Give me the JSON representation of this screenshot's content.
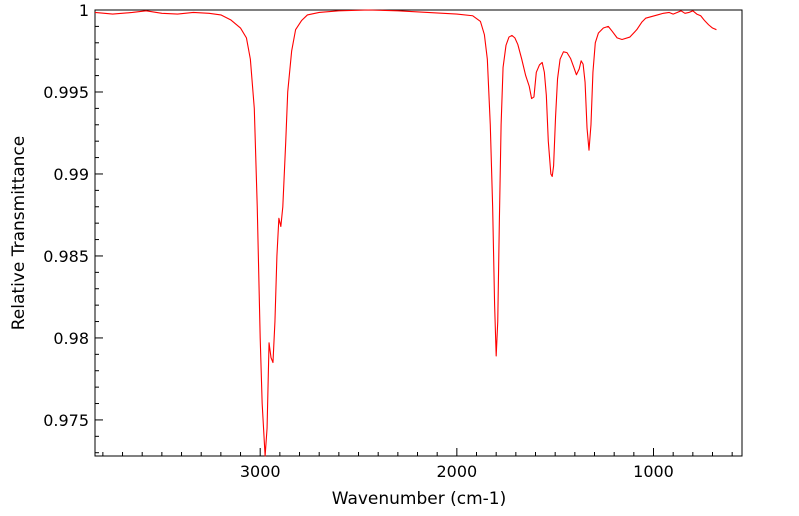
{
  "chart_data": {
    "type": "line",
    "title": "",
    "xlabel": "Wavenumber (cm-1)",
    "ylabel": "Relative Transmittance",
    "xlim": [
      3840,
      550
    ],
    "ylim": [
      0.9728,
      1.0
    ],
    "x_reversed": true,
    "grid": false,
    "legend": "none",
    "x_ticks": [
      {
        "value": 3000,
        "label": "3000"
      },
      {
        "value": 2000,
        "label": "2000"
      },
      {
        "value": 1000,
        "label": "1000"
      }
    ],
    "y_ticks": [
      {
        "value": 1.0,
        "label": "1"
      },
      {
        "value": 0.995,
        "label": "0.995"
      },
      {
        "value": 0.99,
        "label": "0.99"
      },
      {
        "value": 0.985,
        "label": "0.985"
      },
      {
        "value": 0.98,
        "label": "0.98"
      },
      {
        "value": 0.975,
        "label": "0.975"
      }
    ],
    "series": [
      {
        "color": "#ff0000",
        "points": [
          [
            3840,
            0.99985
          ],
          [
            3750,
            0.99975
          ],
          [
            3650,
            0.99985
          ],
          [
            3580,
            0.99995
          ],
          [
            3500,
            0.9998
          ],
          [
            3420,
            0.99975
          ],
          [
            3340,
            0.99985
          ],
          [
            3260,
            0.9998
          ],
          [
            3200,
            0.9997
          ],
          [
            3150,
            0.9994
          ],
          [
            3100,
            0.9989
          ],
          [
            3070,
            0.9983
          ],
          [
            3050,
            0.997
          ],
          [
            3030,
            0.994
          ],
          [
            3015,
            0.988
          ],
          [
            3000,
            0.98
          ],
          [
            2990,
            0.976
          ],
          [
            2975,
            0.9728
          ],
          [
            2965,
            0.9745
          ],
          [
            2955,
            0.9797
          ],
          [
            2945,
            0.9788
          ],
          [
            2935,
            0.9785
          ],
          [
            2925,
            0.981
          ],
          [
            2915,
            0.985
          ],
          [
            2905,
            0.9873
          ],
          [
            2895,
            0.9868
          ],
          [
            2885,
            0.988
          ],
          [
            2870,
            0.992
          ],
          [
            2860,
            0.995
          ],
          [
            2840,
            0.9975
          ],
          [
            2820,
            0.9988
          ],
          [
            2790,
            0.99935
          ],
          [
            2760,
            0.9997
          ],
          [
            2700,
            0.99985
          ],
          [
            2600,
            0.99995
          ],
          [
            2450,
            1.0
          ],
          [
            2300,
            0.99995
          ],
          [
            2150,
            0.99985
          ],
          [
            2000,
            0.99975
          ],
          [
            1920,
            0.99965
          ],
          [
            1880,
            0.9993
          ],
          [
            1860,
            0.9985
          ],
          [
            1845,
            0.997
          ],
          [
            1830,
            0.993
          ],
          [
            1818,
            0.988
          ],
          [
            1808,
            0.982
          ],
          [
            1800,
            0.9789
          ],
          [
            1792,
            0.981
          ],
          [
            1784,
            0.987
          ],
          [
            1775,
            0.993
          ],
          [
            1765,
            0.9965
          ],
          [
            1750,
            0.99785
          ],
          [
            1735,
            0.99835
          ],
          [
            1720,
            0.99845
          ],
          [
            1705,
            0.9983
          ],
          [
            1690,
            0.9979
          ],
          [
            1670,
            0.997
          ],
          [
            1650,
            0.996
          ],
          [
            1632,
            0.99535
          ],
          [
            1620,
            0.9946
          ],
          [
            1608,
            0.9947
          ],
          [
            1596,
            0.9962
          ],
          [
            1580,
            0.99665
          ],
          [
            1566,
            0.9968
          ],
          [
            1555,
            0.9962
          ],
          [
            1545,
            0.9948
          ],
          [
            1535,
            0.992
          ],
          [
            1522,
            0.99
          ],
          [
            1515,
            0.98985
          ],
          [
            1508,
            0.9905
          ],
          [
            1498,
            0.9935
          ],
          [
            1488,
            0.9958
          ],
          [
            1475,
            0.997
          ],
          [
            1458,
            0.99745
          ],
          [
            1440,
            0.9974
          ],
          [
            1422,
            0.99705
          ],
          [
            1405,
            0.9965
          ],
          [
            1392,
            0.99605
          ],
          [
            1378,
            0.9964
          ],
          [
            1368,
            0.9969
          ],
          [
            1358,
            0.9967
          ],
          [
            1348,
            0.9956
          ],
          [
            1338,
            0.9928
          ],
          [
            1328,
            0.99145
          ],
          [
            1318,
            0.993
          ],
          [
            1308,
            0.9962
          ],
          [
            1296,
            0.998
          ],
          [
            1280,
            0.9986
          ],
          [
            1255,
            0.9989
          ],
          [
            1230,
            0.999
          ],
          [
            1210,
            0.9987
          ],
          [
            1185,
            0.9983
          ],
          [
            1160,
            0.9982
          ],
          [
            1120,
            0.99835
          ],
          [
            1085,
            0.9988
          ],
          [
            1060,
            0.99925
          ],
          [
            1040,
            0.9995
          ],
          [
            1010,
            0.9996
          ],
          [
            980,
            0.9997
          ],
          [
            950,
            0.9998
          ],
          [
            920,
            0.99985
          ],
          [
            900,
            0.99975
          ],
          [
            880,
            0.99985
          ],
          [
            860,
            0.99995
          ],
          [
            840,
            0.9998
          ],
          [
            820,
            0.99985
          ],
          [
            800,
            0.99995
          ],
          [
            780,
            0.99975
          ],
          [
            760,
            0.99965
          ],
          [
            740,
            0.99935
          ],
          [
            720,
            0.9991
          ],
          [
            700,
            0.9989
          ],
          [
            680,
            0.9988
          ]
        ]
      }
    ]
  }
}
